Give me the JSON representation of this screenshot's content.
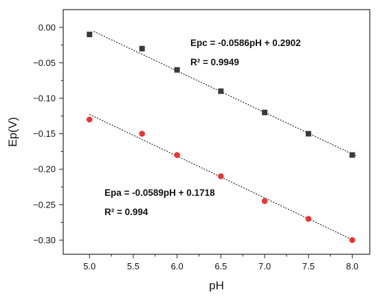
{
  "chart_data": {
    "type": "scatter",
    "xlabel": "pH",
    "ylabel": "Ep(V)",
    "xlim": [
      4.7,
      8.2
    ],
    "ylim": [
      -0.32,
      0.025
    ],
    "xticks": [
      "5.0",
      "5.5",
      "6.0",
      "6.5",
      "7.0",
      "7.5",
      "8.0"
    ],
    "yticks": [
      "0.00",
      "-0.05",
      "-0.10",
      "-0.15",
      "-0.20",
      "-0.25",
      "-0.30"
    ],
    "grid": false,
    "series": [
      {
        "marker": "square",
        "color": "#3a3a3a",
        "x": [
          5.0,
          5.6,
          6.0,
          6.5,
          7.0,
          7.5,
          8.0
        ],
        "y": [
          -0.01,
          -0.03,
          -0.06,
          -0.09,
          -0.12,
          -0.15,
          -0.18
        ],
        "fit": {
          "slope": -0.0586,
          "intercept": 0.2902,
          "x_range": [
            5.05,
            8.05
          ]
        }
      },
      {
        "marker": "circle",
        "color": "#ee3333",
        "x": [
          5.0,
          5.6,
          6.0,
          6.5,
          7.0,
          7.5,
          8.0
        ],
        "y": [
          -0.13,
          -0.15,
          -0.18,
          -0.21,
          -0.245,
          -0.27,
          -0.3
        ],
        "fit": {
          "slope": -0.0589,
          "intercept": 0.1718,
          "x_range": [
            5.0,
            8.0
          ]
        }
      }
    ],
    "annotations": [
      {
        "lines": [
          "Epc = -0.0586pH + 0.2902",
          "R² = 0.9949"
        ]
      },
      {
        "lines": [
          "Epa = -0.0589pH + 0.1718",
          "R² = 0.994"
        ]
      }
    ]
  }
}
